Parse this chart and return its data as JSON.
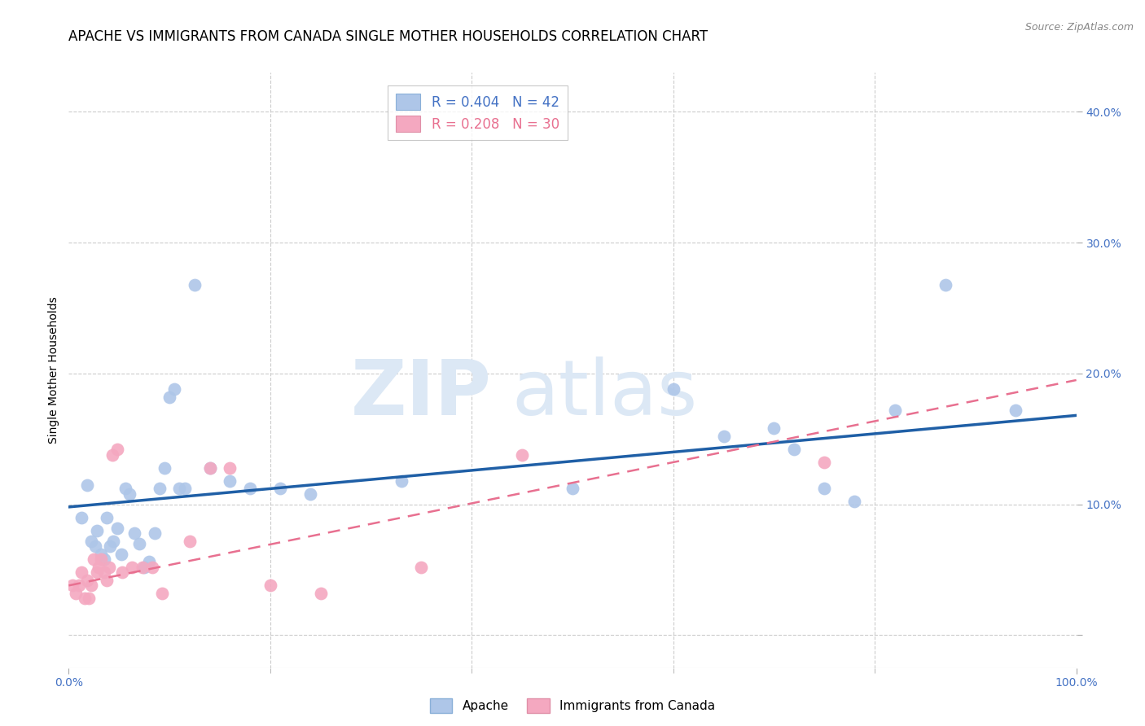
{
  "title": "APACHE VS IMMIGRANTS FROM CANADA SINGLE MOTHER HOUSEHOLDS CORRELATION CHART",
  "source_text": "Source: ZipAtlas.com",
  "ylabel": "Single Mother Households",
  "xlim": [
    0,
    1.0
  ],
  "ylim": [
    -0.025,
    0.43
  ],
  "xticks": [
    0.0,
    1.0
  ],
  "xtick_labels": [
    "0.0%",
    "100.0%"
  ],
  "yticks": [
    0.0,
    0.1,
    0.2,
    0.3,
    0.4
  ],
  "ytick_labels": [
    "",
    "10.0%",
    "20.0%",
    "30.0%",
    "40.0%"
  ],
  "legend_label1": "R = 0.404   N = 42",
  "legend_label2": "R = 0.208   N = 30",
  "scatter_color1": "#aec6e8",
  "scatter_color2": "#f4a8c0",
  "line_color1": "#1f5fa6",
  "line_color2": "#e87090",
  "tick_color": "#4472c4",
  "watermark_text1": "ZIP",
  "watermark_text2": "atlas",
  "watermark_color": "#dce8f5",
  "title_fontsize": 12,
  "axis_label_fontsize": 10,
  "tick_fontsize": 10,
  "apache_x": [
    0.013,
    0.018,
    0.022,
    0.026,
    0.028,
    0.032,
    0.035,
    0.038,
    0.041,
    0.044,
    0.048,
    0.052,
    0.056,
    0.06,
    0.065,
    0.07,
    0.075,
    0.08,
    0.085,
    0.09,
    0.095,
    0.1,
    0.105,
    0.11,
    0.115,
    0.125,
    0.14,
    0.16,
    0.18,
    0.21,
    0.24,
    0.33,
    0.5,
    0.6,
    0.65,
    0.7,
    0.72,
    0.75,
    0.78,
    0.82,
    0.87,
    0.94
  ],
  "apache_y": [
    0.09,
    0.115,
    0.072,
    0.068,
    0.08,
    0.062,
    0.058,
    0.09,
    0.068,
    0.072,
    0.082,
    0.062,
    0.112,
    0.108,
    0.078,
    0.07,
    0.052,
    0.056,
    0.078,
    0.112,
    0.128,
    0.182,
    0.188,
    0.112,
    0.112,
    0.268,
    0.128,
    0.118,
    0.112,
    0.112,
    0.108,
    0.118,
    0.112,
    0.188,
    0.152,
    0.158,
    0.142,
    0.112,
    0.102,
    0.172,
    0.268,
    0.172
  ],
  "canada_x": [
    0.004,
    0.007,
    0.01,
    0.013,
    0.016,
    0.018,
    0.02,
    0.022,
    0.025,
    0.028,
    0.03,
    0.032,
    0.035,
    0.038,
    0.04,
    0.043,
    0.048,
    0.053,
    0.063,
    0.073,
    0.083,
    0.093,
    0.12,
    0.14,
    0.16,
    0.2,
    0.25,
    0.35,
    0.45,
    0.75
  ],
  "canada_y": [
    0.038,
    0.032,
    0.038,
    0.048,
    0.028,
    0.042,
    0.028,
    0.038,
    0.058,
    0.048,
    0.052,
    0.058,
    0.048,
    0.042,
    0.052,
    0.138,
    0.142,
    0.048,
    0.052,
    0.052,
    0.052,
    0.032,
    0.072,
    0.128,
    0.128,
    0.038,
    0.032,
    0.052,
    0.138,
    0.132
  ],
  "apache_trend": [
    0.098,
    0.168
  ],
  "canada_trend": [
    0.038,
    0.195
  ],
  "bottom_legend_labels": [
    "Apache",
    "Immigrants from Canada"
  ]
}
